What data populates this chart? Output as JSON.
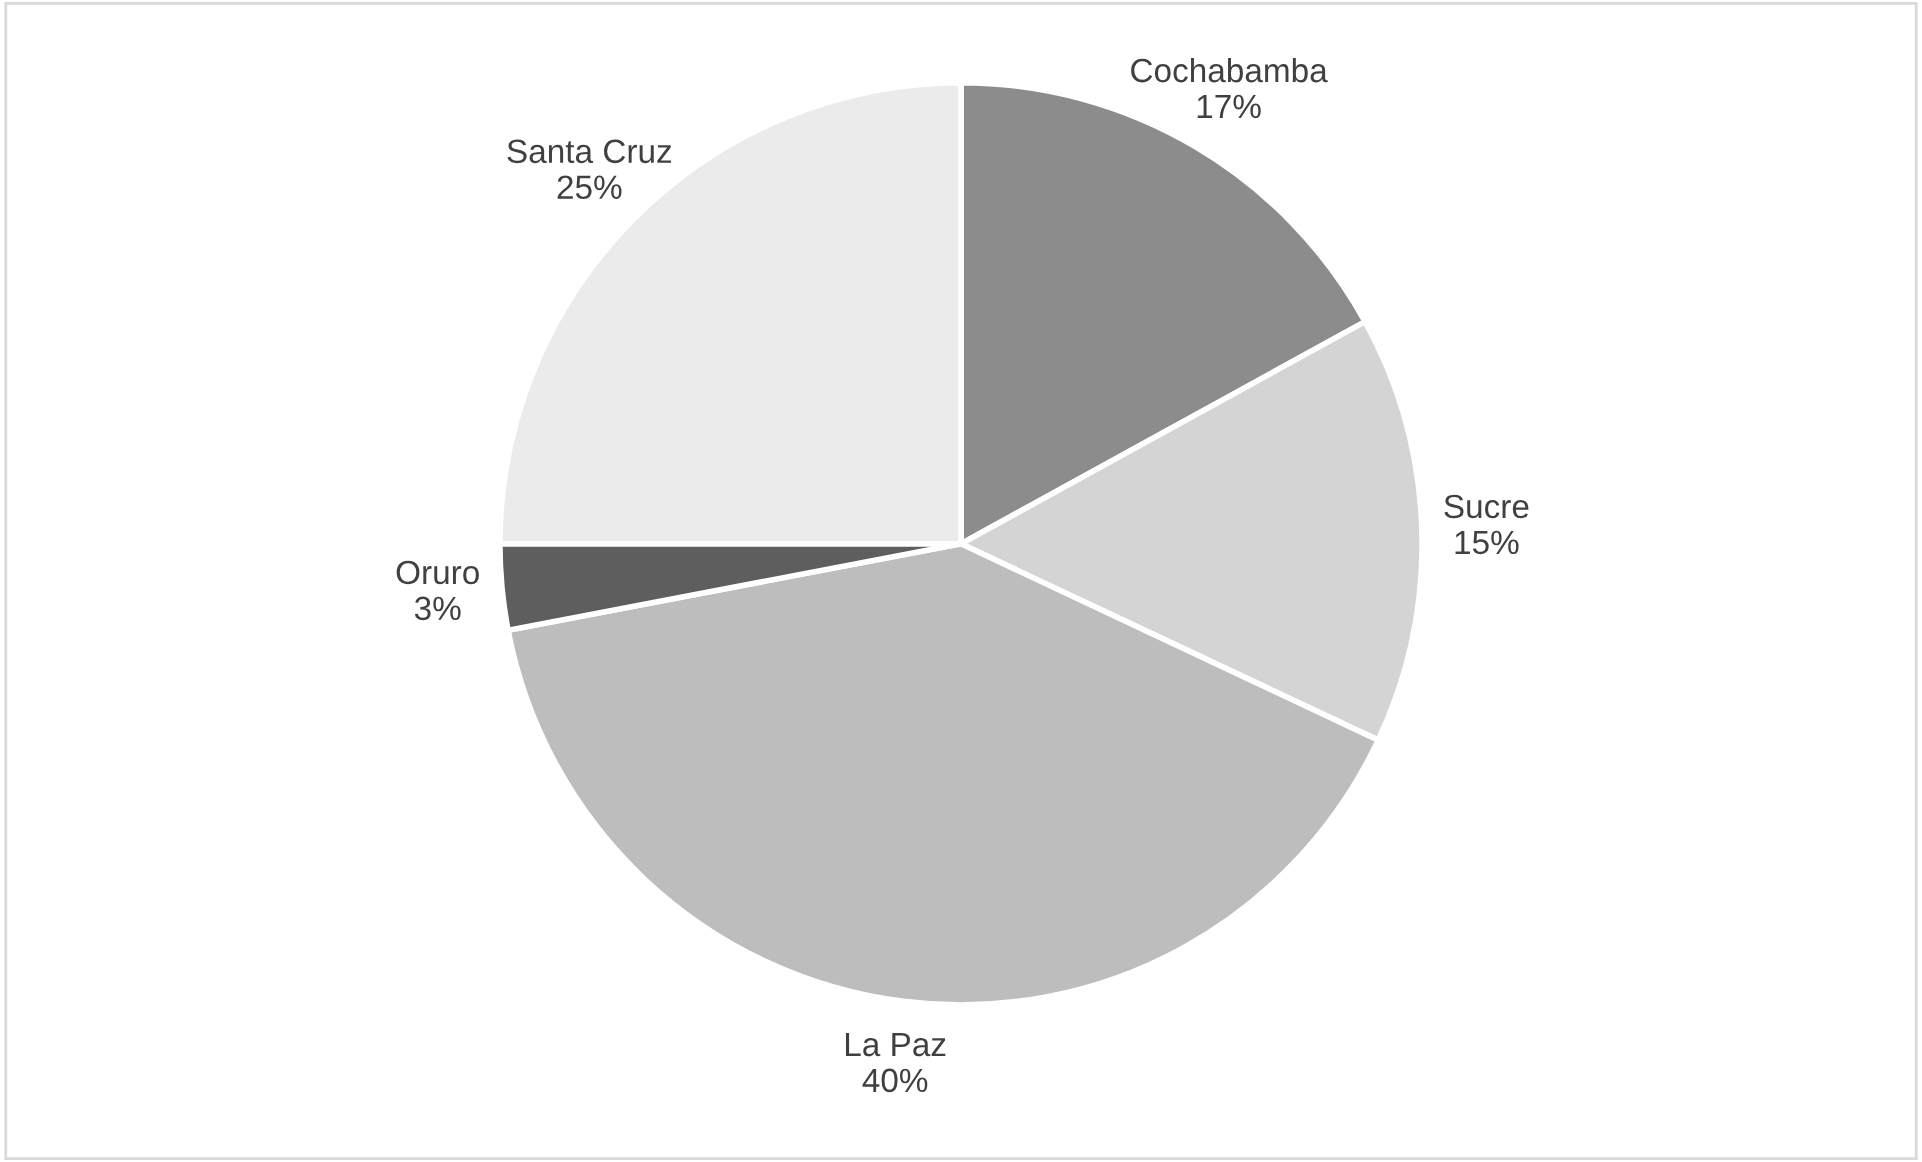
{
  "chart_data": {
    "type": "pie",
    "categories": [
      "Cochabamba",
      "Sucre",
      "La Paz",
      "Oruro",
      "Santa Cruz"
    ],
    "values": [
      17,
      15,
      40,
      3,
      25
    ],
    "colors": [
      "#8c8c8c",
      "#d4d4d4",
      "#bdbdbd",
      "#5e5e5e",
      "#ebebeb"
    ],
    "value_labels": [
      "17%",
      "15%",
      "40%",
      "3%",
      "25%"
    ],
    "legend": false
  }
}
